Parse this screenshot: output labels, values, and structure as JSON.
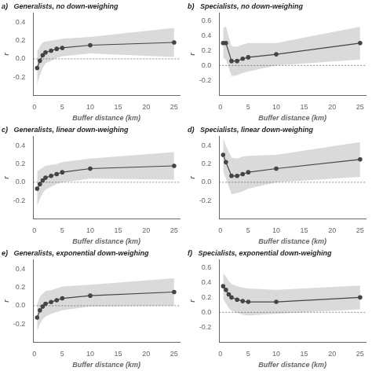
{
  "chart_data": [
    {
      "type": "line",
      "title": "a)   Generalists, no down-weighing",
      "xlabel": "Buffer distance (km)",
      "ylabel": "r",
      "x": [
        0.5,
        1,
        1.5,
        2,
        3,
        4,
        5,
        10,
        25
      ],
      "values": [
        -0.1,
        -0.02,
        0.04,
        0.07,
        0.09,
        0.11,
        0.12,
        0.15,
        0.18
      ],
      "ci_lower": [
        -0.28,
        -0.18,
        -0.1,
        -0.05,
        -0.02,
        0.01,
        0.03,
        0.06,
        0.02
      ],
      "ci_upper": [
        0.08,
        0.14,
        0.18,
        0.19,
        0.2,
        0.21,
        0.22,
        0.24,
        0.34
      ],
      "hline": 0,
      "color": "#444444",
      "xlim": [
        -0.2,
        26
      ],
      "xticks": [
        0,
        5,
        10,
        15,
        20,
        25
      ],
      "ylim": [
        -0.4,
        0.5
      ],
      "yticks": [
        -0.2,
        {
          "value": 0,
          "label": "0.0"
        },
        0.2,
        0.4
      ],
      "grid": false
    },
    {
      "type": "line",
      "title": "b)   Specialists, no down-weighing",
      "xlabel": "Buffer distance (km)",
      "ylabel": "r",
      "x": [
        0.5,
        1,
        2,
        3,
        4,
        5,
        10,
        25
      ],
      "values": [
        0.3,
        0.3,
        0.06,
        0.06,
        0.09,
        0.11,
        0.15,
        0.3
      ],
      "ci_lower": [
        0.1,
        0.08,
        -0.14,
        -0.13,
        -0.1,
        -0.08,
        0.0,
        0.08
      ],
      "ci_upper": [
        0.5,
        0.52,
        0.26,
        0.25,
        0.28,
        0.3,
        0.3,
        0.52
      ],
      "hline": 0,
      "color": "#444444",
      "xlim": [
        -0.2,
        26
      ],
      "xticks": [
        0,
        5,
        10,
        15,
        20,
        25
      ],
      "ylim": [
        -0.4,
        0.7
      ],
      "yticks": [
        -0.2,
        {
          "value": 0,
          "label": "0.0"
        },
        0.2,
        0.4,
        0.6
      ],
      "grid": false
    },
    {
      "type": "line",
      "title": "c)   Generalists, linear down-weighing",
      "xlabel": "Buffer distance (km)",
      "ylabel": "r",
      "x": [
        0.5,
        1,
        1.5,
        2,
        3,
        4,
        5,
        10,
        25
      ],
      "values": [
        -0.07,
        -0.02,
        0.02,
        0.05,
        0.07,
        0.09,
        0.11,
        0.15,
        0.18
      ],
      "ci_lower": [
        -0.26,
        -0.18,
        -0.12,
        -0.08,
        -0.05,
        -0.02,
        0.0,
        0.04,
        0.03
      ],
      "ci_upper": [
        0.12,
        0.14,
        0.16,
        0.18,
        0.19,
        0.2,
        0.22,
        0.26,
        0.33
      ],
      "hline": 0,
      "color": "#444444",
      "xlim": [
        -0.2,
        26
      ],
      "xticks": [
        0,
        5,
        10,
        15,
        20,
        25
      ],
      "ylim": [
        -0.4,
        0.5
      ],
      "yticks": [
        -0.2,
        {
          "value": 0,
          "label": "0.0"
        },
        0.2,
        0.4
      ],
      "grid": false
    },
    {
      "type": "line",
      "title": "d)   Specialists, linear down-weighing",
      "xlabel": "Buffer distance (km)",
      "ylabel": "r",
      "x": [
        0.5,
        1,
        2,
        3,
        4,
        5,
        10,
        25
      ],
      "values": [
        0.3,
        0.22,
        0.07,
        0.07,
        0.09,
        0.11,
        0.15,
        0.25
      ],
      "ci_lower": [
        0.12,
        0.04,
        -0.13,
        -0.12,
        -0.1,
        -0.07,
        0.0,
        0.06
      ],
      "ci_upper": [
        0.48,
        0.4,
        0.27,
        0.26,
        0.28,
        0.29,
        0.3,
        0.44
      ],
      "hline": 0,
      "color": "#444444",
      "xlim": [
        -0.2,
        26
      ],
      "xticks": [
        0,
        5,
        10,
        15,
        20,
        25
      ],
      "ylim": [
        -0.4,
        0.5
      ],
      "yticks": [
        -0.2,
        {
          "value": 0,
          "label": "0.0"
        },
        0.2,
        0.4
      ],
      "grid": false
    },
    {
      "type": "line",
      "title": "e)   Generalists, exponential down-weighing",
      "xlabel": "Buffer distance (km)",
      "ylabel": "r",
      "x": [
        0.5,
        1,
        1.5,
        2,
        3,
        4,
        5,
        10,
        25
      ],
      "values": [
        -0.13,
        -0.05,
        -0.01,
        0.02,
        0.04,
        0.06,
        0.08,
        0.11,
        0.15
      ],
      "ci_lower": [
        -0.28,
        -0.2,
        -0.15,
        -0.12,
        -0.09,
        -0.07,
        -0.05,
        -0.01,
        0.0
      ],
      "ci_upper": [
        0.02,
        0.1,
        0.13,
        0.16,
        0.17,
        0.19,
        0.21,
        0.23,
        0.3
      ],
      "hline": 0,
      "color": "#444444",
      "xlim": [
        -0.2,
        26
      ],
      "xticks": [
        0,
        5,
        10,
        15,
        20,
        25
      ],
      "ylim": [
        -0.4,
        0.5
      ],
      "yticks": [
        -0.2,
        {
          "value": 0,
          "label": "0.0"
        },
        0.2,
        0.4
      ],
      "grid": false
    },
    {
      "type": "line",
      "title": "f)   Specialists, exponential down-weighing",
      "xlabel": "Buffer distance (km)",
      "ylabel": "r",
      "x": [
        0.5,
        1,
        1.5,
        2,
        3,
        4,
        5,
        10,
        25
      ],
      "values": [
        0.35,
        0.3,
        0.24,
        0.2,
        0.17,
        0.15,
        0.14,
        0.14,
        0.2
      ],
      "ci_lower": [
        0.18,
        0.12,
        0.06,
        0.02,
        -0.01,
        -0.03,
        -0.04,
        -0.02,
        0.04
      ],
      "ci_upper": [
        0.52,
        0.48,
        0.42,
        0.38,
        0.35,
        0.33,
        0.32,
        0.3,
        0.36
      ],
      "hline": 0,
      "color": "#444444",
      "xlim": [
        -0.2,
        26
      ],
      "xticks": [
        0,
        5,
        10,
        15,
        20,
        25
      ],
      "ylim": [
        -0.4,
        0.7
      ],
      "yticks": [
        -0.2,
        {
          "value": 0,
          "label": "0.0"
        },
        0.2,
        0.4,
        0.6
      ],
      "grid": false
    }
  ]
}
